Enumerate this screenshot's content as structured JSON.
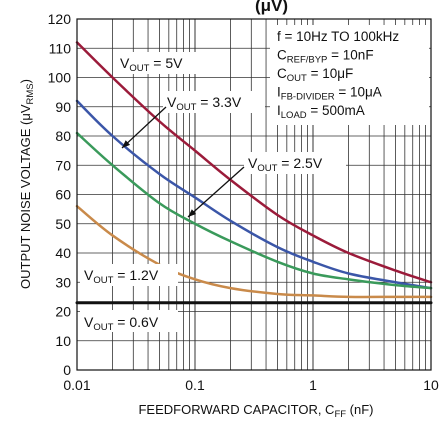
{
  "chart_data": {
    "type": "line",
    "title_fragment": "(μV)",
    "xlabel": {
      "main": "FEEDFORWARD CAPACITOR, C",
      "sub": "FF",
      "tail": " (nF)"
    },
    "ylabel": {
      "main": "OUTPUT NOISE VOLTAGE (μV",
      "sub": "RMS",
      "tail": ")"
    },
    "x_scale": "log",
    "xlim": [
      0.01,
      10
    ],
    "ylim": [
      0,
      120
    ],
    "x_ticks": [
      {
        "value": 0.01,
        "label": "0.01"
      },
      {
        "value": 0.1,
        "label": "0.1"
      },
      {
        "value": 1,
        "label": "1"
      },
      {
        "value": 10,
        "label": "10"
      }
    ],
    "y_ticks": [
      0,
      10,
      20,
      30,
      40,
      50,
      60,
      70,
      80,
      90,
      100,
      110,
      120
    ],
    "grid": true,
    "conditions": [
      {
        "main": "f = 10Hz TO 100kHz",
        "sub": "",
        "tail": ""
      },
      {
        "main": "C",
        "sub": "REF/BYP",
        "tail": " = 10nF"
      },
      {
        "main": "C",
        "sub": "OUT",
        "tail": " = 10μF"
      },
      {
        "main": "I",
        "sub": "FB-DIVIDER",
        "tail": " = 10μA"
      },
      {
        "main": "I",
        "sub": "LOAD",
        "tail": " = 500mA"
      }
    ],
    "series": [
      {
        "name": "V_OUT = 5V",
        "label": {
          "main": "V",
          "sub": "OUT",
          "tail": " = 5V"
        },
        "color": "#9b1b3a",
        "x": [
          0.01,
          0.02,
          0.05,
          0.1,
          0.2,
          0.5,
          1,
          2,
          5,
          10
        ],
        "y": [
          112,
          100,
          85,
          75,
          65,
          53,
          46,
          40,
          34,
          30
        ]
      },
      {
        "name": "V_OUT = 3.3V",
        "label": {
          "main": "V",
          "sub": "OUT",
          "tail": " = 3.3V"
        },
        "color": "#3b56a8",
        "x": [
          0.01,
          0.02,
          0.05,
          0.1,
          0.2,
          0.5,
          1,
          2,
          5,
          10
        ],
        "y": [
          92,
          80,
          67,
          59,
          51,
          42,
          37,
          33,
          30,
          28
        ]
      },
      {
        "name": "V_OUT = 2.5V",
        "label": {
          "main": "V",
          "sub": "OUT",
          "tail": " = 2.5V"
        },
        "color": "#3a9a5b",
        "x": [
          0.01,
          0.02,
          0.05,
          0.1,
          0.2,
          0.5,
          1,
          2,
          5,
          10
        ],
        "y": [
          81,
          70,
          57,
          50,
          44,
          37,
          33,
          31,
          29,
          28
        ]
      },
      {
        "name": "V_OUT = 1.2V",
        "label": {
          "main": "V",
          "sub": "OUT",
          "tail": " = 1.2V"
        },
        "color": "#c98a4a",
        "x": [
          0.01,
          0.02,
          0.05,
          0.1,
          0.2,
          0.5,
          1,
          2,
          5,
          10
        ],
        "y": [
          56,
          46,
          36,
          31,
          28,
          26,
          25.5,
          25,
          25,
          25
        ]
      },
      {
        "name": "V_OUT = 0.6V",
        "label": {
          "main": "V",
          "sub": "OUT",
          "tail": " = 0.6V"
        },
        "color": "#111111",
        "x": [
          0.01,
          0.02,
          0.05,
          0.1,
          0.2,
          0.5,
          1,
          2,
          5,
          10
        ],
        "y": [
          23,
          23,
          23,
          23,
          23,
          23,
          23,
          23,
          23,
          23
        ]
      }
    ]
  }
}
